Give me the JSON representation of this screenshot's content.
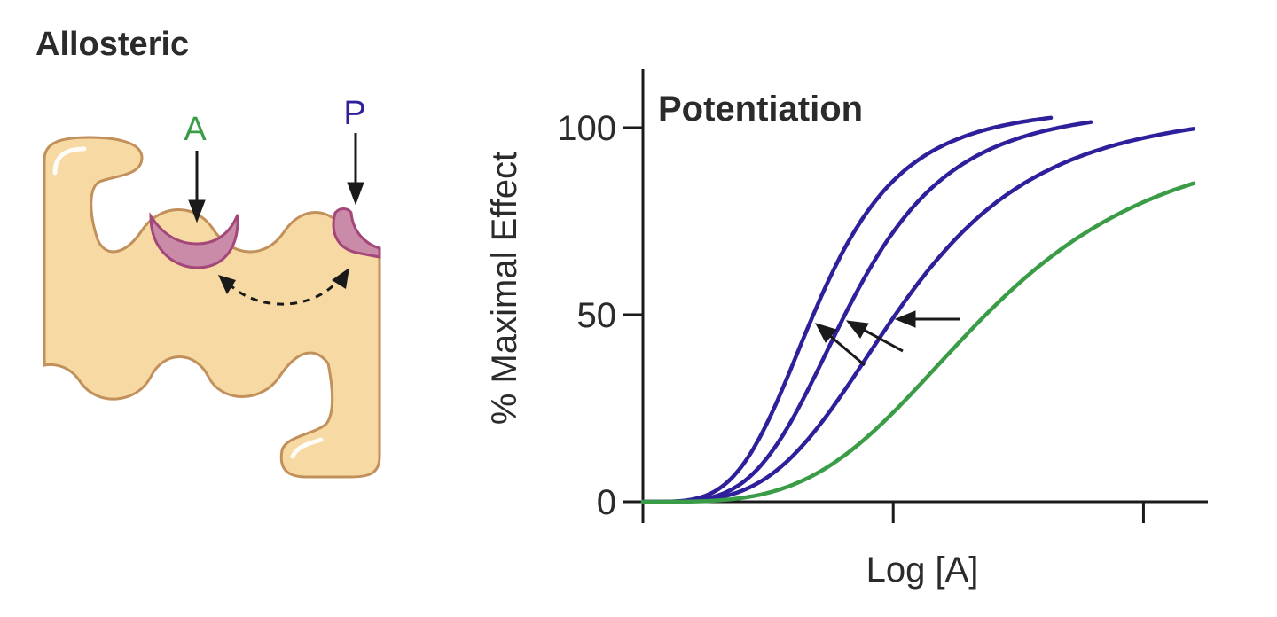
{
  "diagram": {
    "title": "Allosteric",
    "agonist_label": "A",
    "modulator_label": "P",
    "colors": {
      "protein_fill": "#f6d9a3",
      "protein_stroke": "#c2905a",
      "site_fill": "#c98ba8",
      "site_stroke": "#a3467a",
      "agonist": "#3a9c47",
      "modulator": "#2e1f9b",
      "arrow": "#1a1a1a"
    }
  },
  "chart_data": {
    "type": "line",
    "title": "Potentiation",
    "xlabel": "Log [A]",
    "ylabel": "% Maximal Effect",
    "ylim": [
      0,
      115
    ],
    "y_ticks": [
      "0",
      "50",
      "100"
    ],
    "x_ticks": [
      "",
      "",
      ""
    ],
    "grid": false,
    "series": [
      {
        "ec50": 0.7,
        "top": 106,
        "slope": 2.2,
        "x_end": 1.63,
        "color": "#2e1f9b"
      },
      {
        "ec50": 0.83,
        "top": 106,
        "slope": 2.2,
        "x_end": 1.79,
        "color": "#2e1f9b"
      },
      {
        "ec50": 1.04,
        "top": 106,
        "slope": 2.0,
        "x_end": 2.2,
        "color": "#2e1f9b"
      },
      {
        "ec50": 1.37,
        "top": 100,
        "slope": 2.0,
        "x_end": 2.2,
        "color": "#3a9c47"
      }
    ],
    "xlim": [
      0,
      2.25
    ]
  }
}
